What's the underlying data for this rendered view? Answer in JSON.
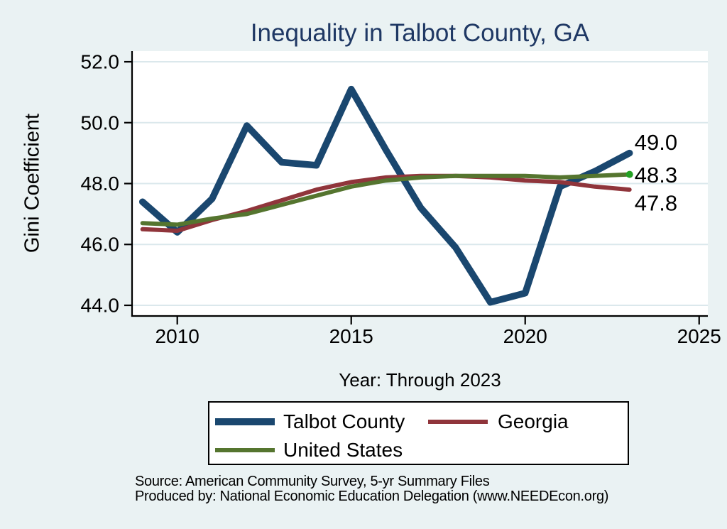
{
  "title": "Inequality in Talbot County, GA",
  "axis": {
    "y_label": "Gini Coefficient",
    "x_label": "Year: Through 2023"
  },
  "legend": {
    "items": [
      {
        "label": "Talbot County",
        "color": "#1a476f",
        "thickness": 10
      },
      {
        "label": "Georgia",
        "color": "#90353b",
        "thickness": 6
      },
      {
        "label": "United States",
        "color": "#55752f",
        "thickness": 6
      }
    ]
  },
  "footer": {
    "source_line": "Source: American Community Survey, 5-yr Summary Files",
    "produced_line": "Produced by: National Economic Education Delegation (www.NEEDEcon.org)"
  },
  "colors": {
    "background": "#eaf2f3",
    "plot_background": "#ffffff",
    "gridline": "#dbe8ec",
    "axis_line": "#000000",
    "title_text": "#1f3864",
    "tick_text": "#000000",
    "end_dot": "#23a123"
  },
  "chart_data": {
    "type": "line",
    "title": "Inequality in Talbot County, GA",
    "xlabel": "Year: Through 2023",
    "ylabel": "Gini Coefficient",
    "x": [
      2009,
      2010,
      2011,
      2012,
      2013,
      2014,
      2015,
      2016,
      2017,
      2018,
      2019,
      2020,
      2021,
      2022,
      2023
    ],
    "series": [
      {
        "name": "Talbot County",
        "color": "#1a476f",
        "stroke_width": 9.5,
        "values": [
          47.4,
          46.4,
          47.5,
          49.9,
          48.7,
          48.6,
          51.1,
          49.1,
          47.2,
          45.9,
          44.1,
          44.4,
          47.9,
          48.4,
          49.0
        ]
      },
      {
        "name": "Georgia",
        "color": "#90353b",
        "stroke_width": 6,
        "values": [
          46.5,
          46.45,
          46.8,
          47.1,
          47.45,
          47.8,
          48.05,
          48.2,
          48.25,
          48.25,
          48.2,
          48.1,
          48.05,
          47.9,
          47.8
        ]
      },
      {
        "name": "United States",
        "color": "#55752f",
        "stroke_width": 6,
        "end_dot": true,
        "values": [
          46.7,
          46.65,
          46.85,
          47.0,
          47.3,
          47.6,
          47.9,
          48.1,
          48.2,
          48.25,
          48.25,
          48.25,
          48.2,
          48.25,
          48.3
        ]
      }
    ],
    "x_ticks": {
      "values": [
        2010,
        2015,
        2020,
        2025
      ],
      "labels": [
        "2010",
        "2015",
        "2020",
        "2025"
      ]
    },
    "y_ticks": {
      "values": [
        44,
        46,
        48,
        50,
        52
      ],
      "labels": [
        "44.0",
        "46.0",
        "48.0",
        "50.0",
        "52.0"
      ]
    },
    "xlim": [
      2008.7,
      2025.25
    ],
    "ylim": [
      43.65,
      52.35
    ],
    "grid": "horizontal-only",
    "legend_position": "below",
    "end_labels": [
      {
        "text": "49.0",
        "value": 49.0,
        "dy": -15
      },
      {
        "text": "48.3",
        "value": 48.3,
        "dy": 1
      },
      {
        "text": "47.8",
        "value": 47.8,
        "dy": 19
      }
    ]
  }
}
